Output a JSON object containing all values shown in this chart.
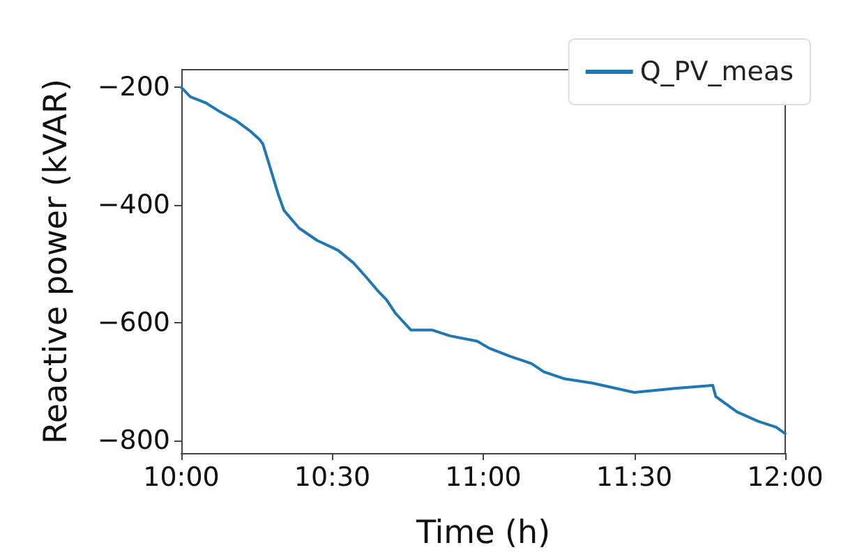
{
  "chart_data": {
    "type": "line",
    "xlabel": "Time (h)",
    "ylabel": "Reactive power (kVAR)",
    "xlim": [
      10,
      12
    ],
    "xticks": [
      {
        "value": 10,
        "label": "10:00"
      },
      {
        "value": 10.5,
        "label": "10:30"
      },
      {
        "value": 11,
        "label": "11:00"
      },
      {
        "value": 11.5,
        "label": "11:30"
      },
      {
        "value": 12,
        "label": "12:00"
      }
    ],
    "ylim": [
      -821,
      -170
    ],
    "yticks": [
      -800,
      -600,
      -400,
      -200
    ],
    "legend": "top right",
    "grid": false,
    "marker": "none",
    "line_style": "solid",
    "series": [
      {
        "name": "Q_PV_meas",
        "color": "#1f77b4",
        "x": [
          10.0,
          10.03,
          10.08,
          10.13,
          10.18,
          10.23,
          10.26,
          10.27,
          10.29,
          10.32,
          10.34,
          10.39,
          10.45,
          10.5,
          10.52,
          10.57,
          10.61,
          10.65,
          10.68,
          10.71,
          10.76,
          10.83,
          10.89,
          10.98,
          11.02,
          11.09,
          11.16,
          11.2,
          11.27,
          11.36,
          11.5,
          11.64,
          11.76,
          11.77,
          11.84,
          11.91,
          11.97,
          12.0
        ],
        "values": [
          -200,
          -216,
          -226,
          -242,
          -256,
          -275,
          -289,
          -296,
          -329,
          -380,
          -409,
          -439,
          -460,
          -472,
          -477,
          -498,
          -521,
          -545,
          -561,
          -584,
          -612,
          -612,
          -622,
          -631,
          -643,
          -657,
          -669,
          -683,
          -695,
          -702,
          -718,
          -711,
          -706,
          -725,
          -751,
          -767,
          -777,
          -788
        ]
      }
    ]
  }
}
